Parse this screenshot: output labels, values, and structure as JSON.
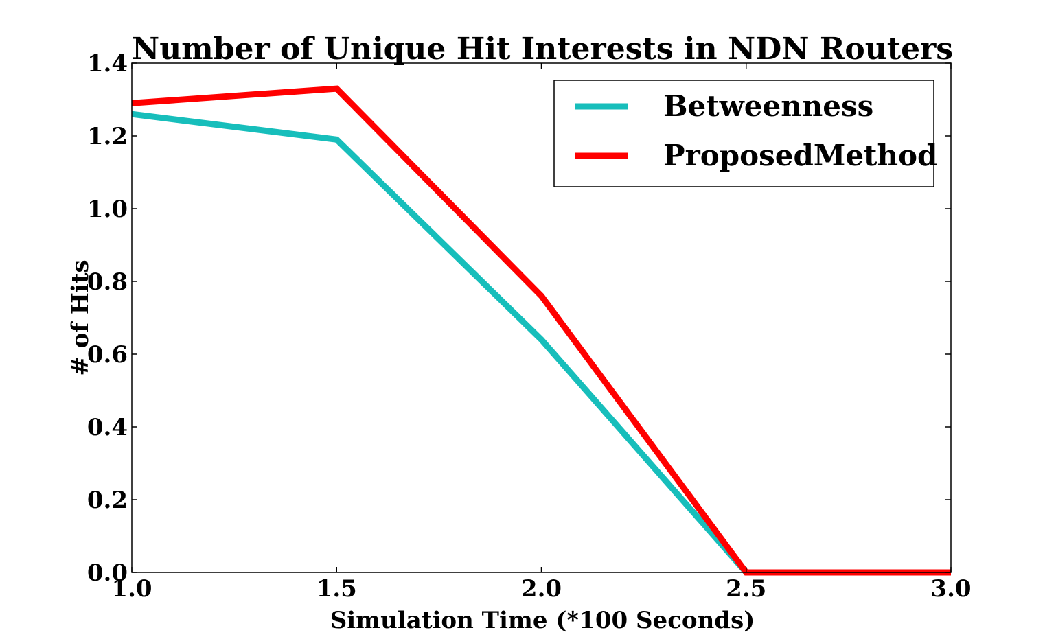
{
  "chart_data": {
    "type": "line",
    "title": "Number of Unique Hit Interests in NDN Routers",
    "xlabel": "Simulation Time (*100 Seconds)",
    "ylabel": "# of Hits",
    "xlim": [
      1.0,
      3.0
    ],
    "ylim": [
      0.0,
      1.4
    ],
    "xticks": [
      "1.0",
      "1.5",
      "2.0",
      "2.5",
      "3.0"
    ],
    "yticks": [
      "0.0",
      "0.2",
      "0.4",
      "0.6",
      "0.8",
      "1.0",
      "1.2",
      "1.4"
    ],
    "x": [
      1.0,
      1.5,
      2.0,
      2.5,
      3.0
    ],
    "series": [
      {
        "name": "Betweenness",
        "color": "#17bebb",
        "values": [
          1.26,
          1.19,
          0.64,
          0.0,
          0.0
        ]
      },
      {
        "name": "ProposedMethod",
        "color": "#ff0000",
        "values": [
          1.29,
          1.33,
          0.76,
          0.0,
          0.0
        ]
      }
    ],
    "grid": false,
    "legend": "top-right"
  }
}
